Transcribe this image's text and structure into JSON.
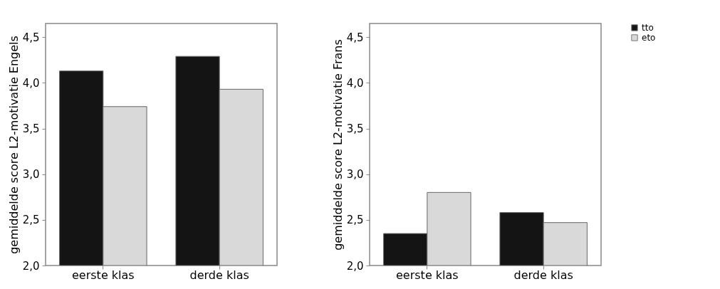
{
  "chart_data": [
    {
      "type": "bar",
      "ylabel": "gemiddelde score L2-motivatie Engels",
      "categories": [
        "eerste klas",
        "derde klas"
      ],
      "series": [
        {
          "name": "tto",
          "color": "#141414",
          "values": [
            4.13,
            4.29
          ]
        },
        {
          "name": "eto",
          "color": "#d9d9d9",
          "values": [
            3.74,
            3.93
          ]
        }
      ],
      "ylim": [
        2,
        4.65
      ],
      "yticks": [
        {
          "value": 2,
          "label": "2,0"
        },
        {
          "value": 2.5,
          "label": "2,5"
        },
        {
          "value": 3,
          "label": "3,0"
        },
        {
          "value": 3.5,
          "label": "3,5"
        },
        {
          "value": 4,
          "label": "4,0"
        },
        {
          "value": 4.5,
          "label": "4,5"
        }
      ],
      "grid": false,
      "legend": "top right"
    },
    {
      "type": "bar",
      "ylabel": "gemiddelde score L2-motivatie Frans",
      "categories": [
        "eerste klas",
        "derde klas"
      ],
      "series": [
        {
          "name": "tto",
          "color": "#141414",
          "values": [
            2.35,
            2.58
          ]
        },
        {
          "name": "eto",
          "color": "#d9d9d9",
          "values": [
            2.8,
            2.47
          ]
        }
      ],
      "ylim": [
        2,
        4.65
      ],
      "yticks": [
        {
          "value": 2,
          "label": "2,0"
        },
        {
          "value": 2.5,
          "label": "2,5"
        },
        {
          "value": 3,
          "label": "3,0"
        },
        {
          "value": 3.5,
          "label": "3,5"
        },
        {
          "value": 4,
          "label": "4,0"
        },
        {
          "value": 4.5,
          "label": "4,5"
        }
      ],
      "grid": false,
      "legend": "top right"
    }
  ]
}
